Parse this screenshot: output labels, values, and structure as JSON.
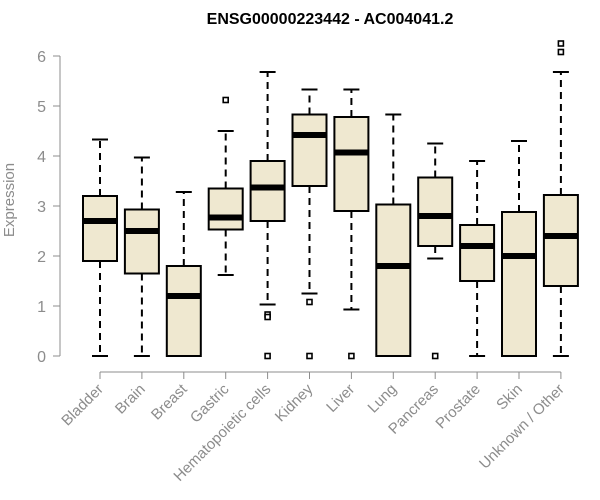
{
  "chart_data": {
    "type": "boxplot",
    "title": "ENSG00000223442 - AC004041.2",
    "xlabel": "",
    "ylabel": "Expression",
    "ylim": [
      0,
      6.25
    ],
    "yticks": [
      0,
      1,
      2,
      3,
      4,
      5,
      6
    ],
    "grid": false,
    "box_fill": "#efe8d0",
    "box_stroke": "#000000",
    "axis_color": "#8c8c8c",
    "categories": [
      "Bladder",
      "Brain",
      "Breast",
      "Gastric",
      "Hematopoietic cells",
      "Kidney",
      "Liver",
      "Lung",
      "Pancreas",
      "Prostate",
      "Skin",
      "Unknown / Other"
    ],
    "boxes": [
      {
        "category": "Bladder",
        "whisker_low": 0.0,
        "q1": 1.9,
        "median": 2.7,
        "q3": 3.2,
        "whisker_high": 4.33,
        "outliers": []
      },
      {
        "category": "Brain",
        "whisker_low": 0.0,
        "q1": 1.65,
        "median": 2.5,
        "q3": 2.93,
        "whisker_high": 3.97,
        "outliers": []
      },
      {
        "category": "Breast",
        "whisker_low": 0.0,
        "q1": 0.0,
        "median": 1.2,
        "q3": 1.8,
        "whisker_high": 3.28,
        "outliers": []
      },
      {
        "category": "Gastric",
        "whisker_low": 1.62,
        "q1": 2.53,
        "median": 2.77,
        "q3": 3.35,
        "whisker_high": 4.5,
        "outliers": [
          5.12
        ]
      },
      {
        "category": "Hematopoietic cells",
        "whisker_low": 1.03,
        "q1": 2.7,
        "median": 3.37,
        "q3": 3.9,
        "whisker_high": 5.68,
        "outliers": [
          0.83,
          0.78,
          0.0
        ]
      },
      {
        "category": "Kidney",
        "whisker_low": 1.25,
        "q1": 3.4,
        "median": 4.42,
        "q3": 4.83,
        "whisker_high": 5.33,
        "outliers": [
          1.08,
          0.0
        ]
      },
      {
        "category": "Liver",
        "whisker_low": 0.93,
        "q1": 2.9,
        "median": 4.07,
        "q3": 4.78,
        "whisker_high": 5.33,
        "outliers": [
          0.0
        ]
      },
      {
        "category": "Lung",
        "whisker_low": 0.0,
        "q1": 0.0,
        "median": 1.8,
        "q3": 3.03,
        "whisker_high": 4.83,
        "outliers": []
      },
      {
        "category": "Pancreas",
        "whisker_low": 1.95,
        "q1": 2.2,
        "median": 2.8,
        "q3": 3.57,
        "whisker_high": 4.25,
        "outliers": [
          0.0
        ]
      },
      {
        "category": "Prostate",
        "whisker_low": 0.0,
        "q1": 1.5,
        "median": 2.2,
        "q3": 2.62,
        "whisker_high": 3.9,
        "outliers": []
      },
      {
        "category": "Skin",
        "whisker_low": 0.0,
        "q1": 0.0,
        "median": 2.0,
        "q3": 2.88,
        "whisker_high": 4.3,
        "outliers": []
      },
      {
        "category": "Unknown / Other",
        "whisker_low": 0.0,
        "q1": 1.4,
        "median": 2.4,
        "q3": 3.22,
        "whisker_high": 5.68,
        "outliers": [
          6.08,
          6.25
        ]
      }
    ]
  }
}
